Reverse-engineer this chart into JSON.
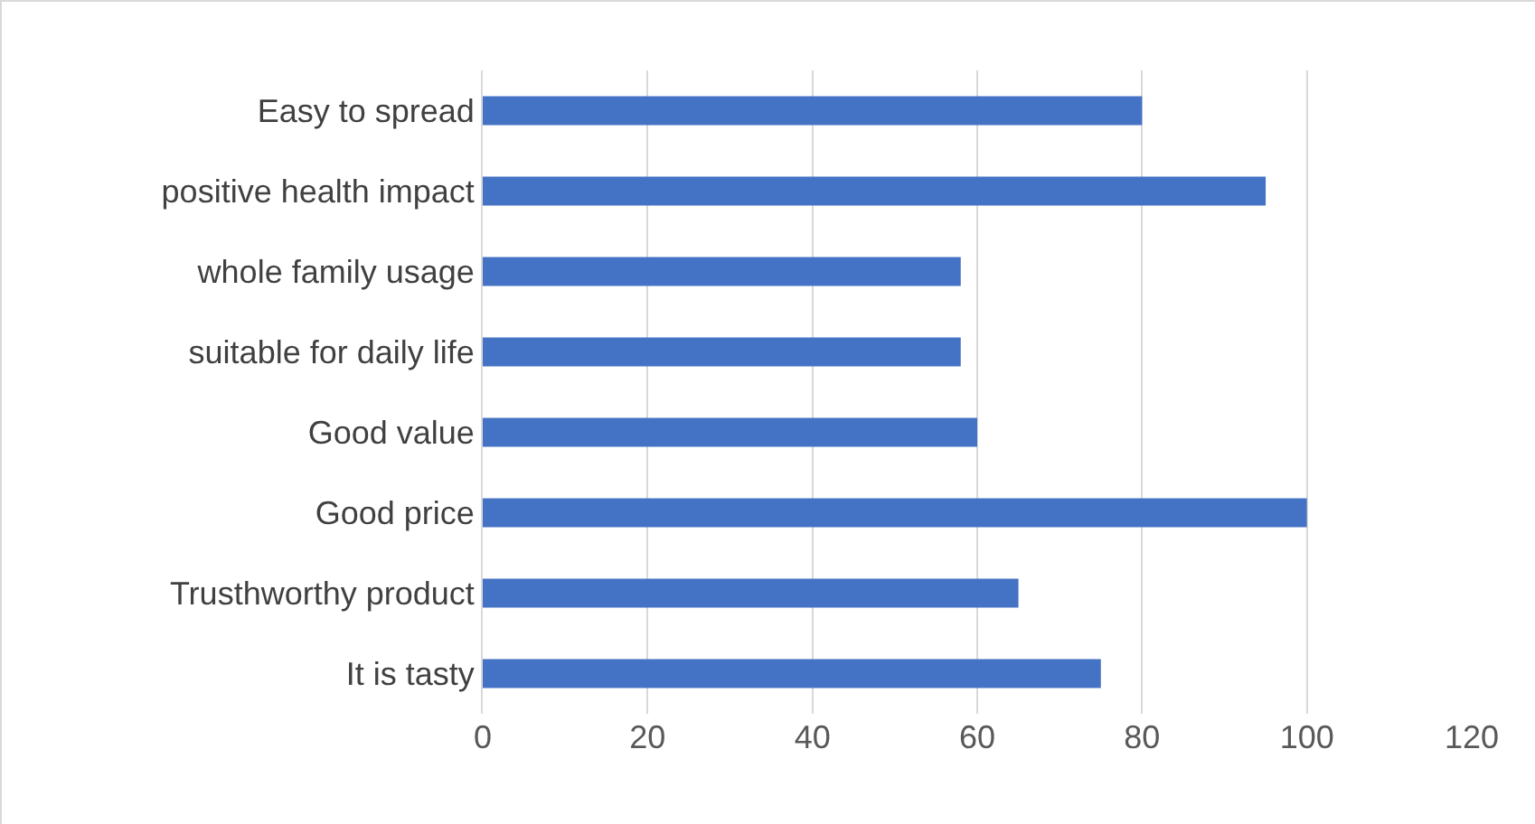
{
  "chart_data": {
    "type": "bar",
    "orientation": "horizontal",
    "categories": [
      "Easy to spread",
      "positive health impact",
      "whole family usage",
      "suitable for daily life",
      "Good value",
      "Good price",
      "Trusthworthy product",
      "It is tasty"
    ],
    "values": [
      80,
      95,
      58,
      58,
      60,
      100,
      65,
      75
    ],
    "color": "#4472c4",
    "xlim": [
      0,
      120
    ],
    "xticks": [
      0,
      20,
      40,
      60,
      80,
      100,
      120
    ],
    "grid": "x"
  }
}
